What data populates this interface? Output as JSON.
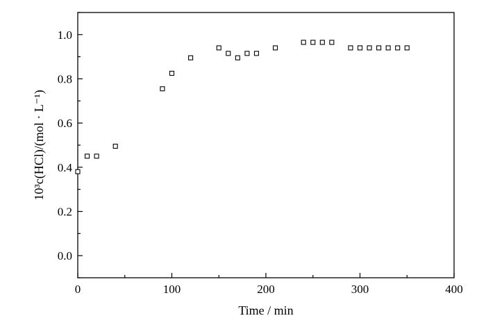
{
  "chart_data": {
    "type": "scatter",
    "title": "",
    "xlabel": "Time / min",
    "ylabel": "10³c(HCl)/(mol · L⁻¹)",
    "xlim": [
      0,
      400
    ],
    "ylim": [
      -0.1,
      1.1
    ],
    "x_ticks": [
      0,
      100,
      200,
      300,
      400
    ],
    "x_tick_labels": [
      "0",
      "100",
      "200",
      "300",
      "400"
    ],
    "y_ticks": [
      0.0,
      0.2,
      0.4,
      0.6,
      0.8,
      1.0
    ],
    "y_tick_labels": [
      "0.0",
      "0.2",
      "0.4",
      "0.6",
      "0.8",
      "1.0"
    ],
    "grid": false,
    "marker": "open-square",
    "series": [
      {
        "points": [
          [
            0,
            0.38
          ],
          [
            10,
            0.45
          ],
          [
            20,
            0.45
          ],
          [
            40,
            0.495
          ],
          [
            90,
            0.755
          ],
          [
            100,
            0.825
          ],
          [
            120,
            0.895
          ],
          [
            150,
            0.94
          ],
          [
            160,
            0.915
          ],
          [
            170,
            0.895
          ],
          [
            180,
            0.915
          ],
          [
            190,
            0.915
          ],
          [
            210,
            0.94
          ],
          [
            240,
            0.965
          ],
          [
            250,
            0.965
          ],
          [
            260,
            0.965
          ],
          [
            270,
            0.965
          ],
          [
            290,
            0.94
          ],
          [
            300,
            0.94
          ],
          [
            310,
            0.94
          ],
          [
            320,
            0.94
          ],
          [
            330,
            0.94
          ],
          [
            340,
            0.94
          ],
          [
            350,
            0.94
          ]
        ]
      }
    ]
  }
}
